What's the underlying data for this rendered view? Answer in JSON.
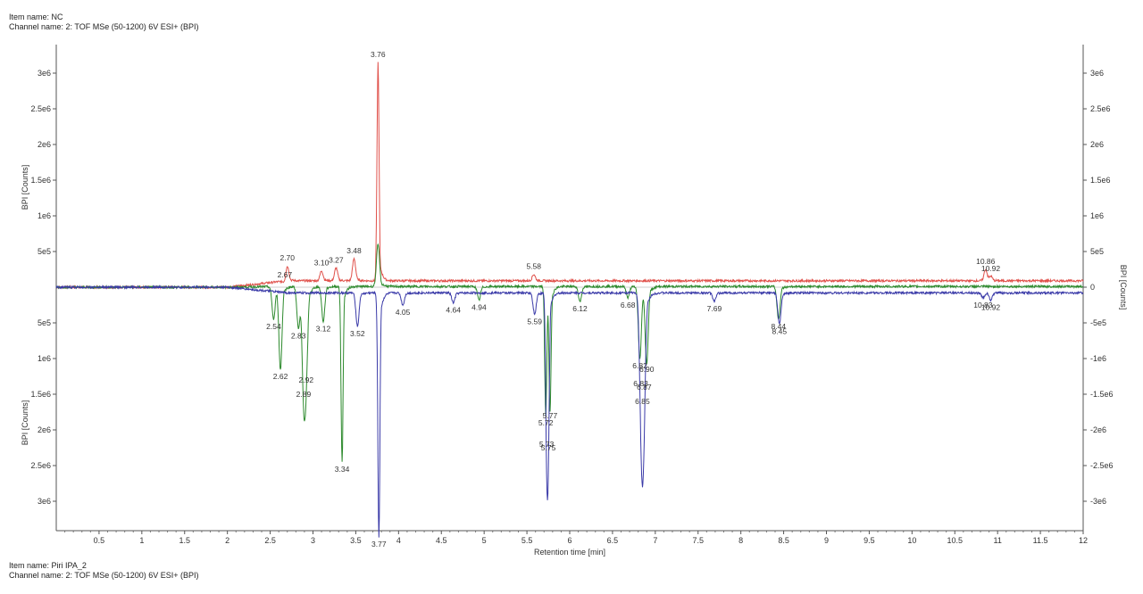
{
  "header_top": {
    "item_name": "Item name: NC",
    "channel_name": "Channel name: 2: TOF MSe (50-1200) 6V ESI+ (BPI)"
  },
  "header_bottom": {
    "item_name": "Item name: Piri IPA_2",
    "channel_name": "Channel name: 2: TOF MSe (50-1200) 6V ESI+ (BPI)"
  },
  "chart_data": {
    "type": "line",
    "title": "",
    "xlabel": "Retention time [min]",
    "ylabel_left_top": "BPI [Counts]",
    "ylabel_left_bottom": "BPI [Counts]",
    "ylabel_right": "BPI [Counts]",
    "xlim": [
      0,
      12
    ],
    "ylim": [
      -3500000,
      3500000
    ],
    "x_ticks": [
      0.5,
      1,
      1.5,
      2,
      2.5,
      3,
      3.5,
      4,
      4.5,
      5,
      5.5,
      6,
      6.5,
      7,
      7.5,
      8,
      8.5,
      9,
      9.5,
      10,
      10.5,
      11,
      11.5,
      12
    ],
    "x_tick_labels": [
      "0.5",
      "1",
      "1.5",
      "2",
      "2.5",
      "3",
      "3.5",
      "4",
      "4.5",
      "5",
      "5.5",
      "6",
      "6.5",
      "7",
      "7.5",
      "8",
      "8.5",
      "9",
      "9.5",
      "10",
      "10.5",
      "11",
      "11.5",
      "12"
    ],
    "y_ticks_left_top": [
      {
        "v": 3000000,
        "label": "3e6"
      },
      {
        "v": 2500000,
        "label": "2.5e6"
      },
      {
        "v": 2000000,
        "label": "2e6"
      },
      {
        "v": 1500000,
        "label": "1.5e6"
      },
      {
        "v": 1000000,
        "label": "1e6"
      },
      {
        "v": 500000,
        "label": "5e5"
      }
    ],
    "y_ticks_left_bottom": [
      {
        "v": -500000,
        "label": "5e5"
      },
      {
        "v": -1000000,
        "label": "1e6"
      },
      {
        "v": -1500000,
        "label": "1.5e6"
      },
      {
        "v": -2000000,
        "label": "2e6"
      },
      {
        "v": -2500000,
        "label": "2.5e6"
      },
      {
        "v": -3000000,
        "label": "3e6"
      }
    ],
    "y_ticks_right": [
      {
        "v": 3000000,
        "label": "3e6"
      },
      {
        "v": 2500000,
        "label": "2.5e6"
      },
      {
        "v": 2000000,
        "label": "2e6"
      },
      {
        "v": 1500000,
        "label": "1.5e6"
      },
      {
        "v": 1000000,
        "label": "1e6"
      },
      {
        "v": 500000,
        "label": "5e5"
      },
      {
        "v": 0,
        "label": "0"
      },
      {
        "v": -500000,
        "label": "-5e5"
      },
      {
        "v": -1000000,
        "label": "-1e6"
      },
      {
        "v": -1500000,
        "label": "-1.5e6"
      },
      {
        "v": -2000000,
        "label": "-2e6"
      },
      {
        "v": -2500000,
        "label": "-2.5e6"
      },
      {
        "v": -3000000,
        "label": "-3e6"
      }
    ],
    "series": [
      {
        "color": "#e0504a",
        "baseline": 90000,
        "peaks": [
          {
            "x": 2.67,
            "y": 60000,
            "label": "2.67"
          },
          {
            "x": 2.7,
            "y": 300000,
            "label": "2.70"
          },
          {
            "x": 3.1,
            "y": 230000,
            "label": "3.10"
          },
          {
            "x": 3.27,
            "y": 270000,
            "label": "3.27"
          },
          {
            "x": 3.48,
            "y": 400000,
            "label": "3.48"
          },
          {
            "x": 3.76,
            "y": 3150000,
            "label": "3.76"
          },
          {
            "x": 5.58,
            "y": 180000,
            "label": "5.58"
          },
          {
            "x": 10.86,
            "y": 250000,
            "label": "10.86"
          },
          {
            "x": 10.92,
            "y": 150000,
            "label": "10.92"
          }
        ]
      },
      {
        "color": "#2d8a2d",
        "baseline": 10000,
        "peaks": [
          {
            "x": 2.54,
            "y": -450000,
            "label": "2.54"
          },
          {
            "x": 2.62,
            "y": -1150000,
            "label": "2.62"
          },
          {
            "x": 2.83,
            "y": -580000,
            "label": "2.83"
          },
          {
            "x": 2.89,
            "y": -1400000,
            "label": "2.89"
          },
          {
            "x": 2.92,
            "y": -1200000,
            "label": "2.92"
          },
          {
            "x": 3.12,
            "y": -480000,
            "label": "3.12"
          },
          {
            "x": 3.34,
            "y": -2450000,
            "label": "3.34"
          },
          {
            "x": 3.76,
            "y": 600000,
            "label": ""
          },
          {
            "x": 4.94,
            "y": -180000,
            "label": "4.94"
          },
          {
            "x": 5.72,
            "y": -1800000,
            "label": "5.72"
          },
          {
            "x": 5.77,
            "y": -1700000,
            "label": "5.77"
          },
          {
            "x": 6.12,
            "y": -200000,
            "label": "6.12"
          },
          {
            "x": 6.68,
            "y": -150000,
            "label": "6.68"
          },
          {
            "x": 6.82,
            "y": -1000000,
            "label": "6.82"
          },
          {
            "x": 6.9,
            "y": -1050000,
            "label": "6.90"
          },
          {
            "x": 8.44,
            "y": -450000,
            "label": "8.44"
          }
        ]
      },
      {
        "color": "#3a3aa8",
        "baseline": -80000,
        "peaks": [
          {
            "x": 3.52,
            "y": -550000,
            "label": "3.52"
          },
          {
            "x": 3.77,
            "y": -3500000,
            "label": "3.77"
          },
          {
            "x": 4.05,
            "y": -250000,
            "label": "4.05"
          },
          {
            "x": 4.64,
            "y": -220000,
            "label": "4.64"
          },
          {
            "x": 5.59,
            "y": -380000,
            "label": "5.59"
          },
          {
            "x": 5.73,
            "y": -2100000,
            "label": "5.73"
          },
          {
            "x": 5.75,
            "y": -2150000,
            "label": "5.75"
          },
          {
            "x": 6.83,
            "y": -1250000,
            "label": "6.83"
          },
          {
            "x": 6.85,
            "y": -1500000,
            "label": "6.85"
          },
          {
            "x": 6.87,
            "y": -1300000,
            "label": "6.87"
          },
          {
            "x": 7.69,
            "y": -200000,
            "label": "7.69"
          },
          {
            "x": 8.45,
            "y": -520000,
            "label": "8.45"
          },
          {
            "x": 10.83,
            "y": -150000,
            "label": "10.83"
          },
          {
            "x": 10.92,
            "y": -180000,
            "label": "10.92"
          }
        ]
      }
    ]
  }
}
